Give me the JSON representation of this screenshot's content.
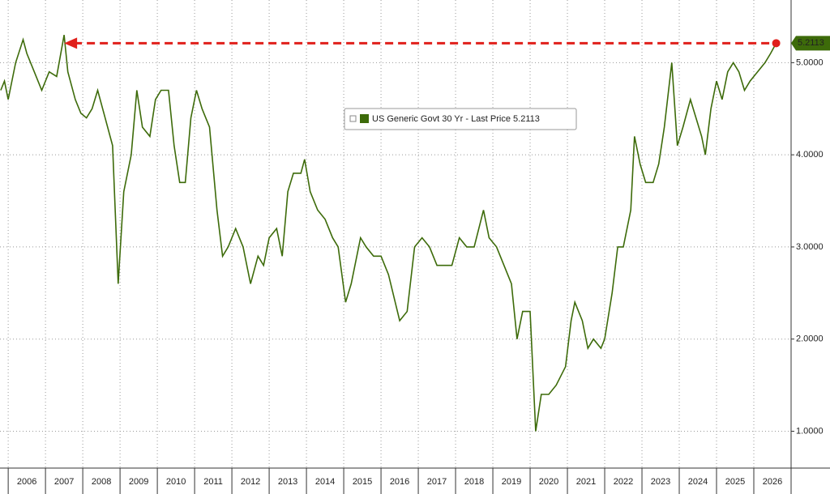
{
  "chart_data": {
    "type": "line",
    "series": [
      {
        "name": "US Generic Govt 30 Yr - Last Price 5.2113",
        "color": "#3d6b0a",
        "x": [
          2005.8,
          2005.9,
          2006.0,
          2006.2,
          2006.4,
          2006.5,
          2006.7,
          2006.9,
          2007.1,
          2007.3,
          2007.5,
          2007.6,
          2007.8,
          2007.95,
          2008.1,
          2008.25,
          2008.4,
          2008.6,
          2008.8,
          2008.95,
          2009.1,
          2009.3,
          2009.45,
          2009.6,
          2009.8,
          2009.95,
          2010.1,
          2010.3,
          2010.45,
          2010.6,
          2010.75,
          2010.9,
          2011.05,
          2011.2,
          2011.4,
          2011.6,
          2011.75,
          2011.9,
          2012.1,
          2012.3,
          2012.5,
          2012.7,
          2012.85,
          2013.0,
          2013.2,
          2013.35,
          2013.5,
          2013.65,
          2013.85,
          2013.95,
          2014.1,
          2014.3,
          2014.5,
          2014.7,
          2014.85,
          2015.05,
          2015.2,
          2015.45,
          2015.6,
          2015.8,
          2016.0,
          2016.2,
          2016.5,
          2016.7,
          2016.9,
          2017.1,
          2017.3,
          2017.5,
          2017.7,
          2017.9,
          2018.1,
          2018.3,
          2018.5,
          2018.75,
          2018.9,
          2019.1,
          2019.3,
          2019.5,
          2019.65,
          2019.8,
          2020.0,
          2020.15,
          2020.3,
          2020.5,
          2020.7,
          2020.95,
          2021.1,
          2021.2,
          2021.4,
          2021.55,
          2021.7,
          2021.9,
          2022.0,
          2022.2,
          2022.35,
          2022.5,
          2022.7,
          2022.8,
          2022.95,
          2023.1,
          2023.3,
          2023.45,
          2023.6,
          2023.8,
          2023.95,
          2024.1,
          2024.3,
          2024.45,
          2024.6,
          2024.7,
          2024.85,
          2025.0,
          2025.15,
          2025.3,
          2025.45,
          2025.6,
          2025.75,
          2025.9,
          2026.1,
          2026.3,
          2026.45,
          2026.6
        ],
        "values": [
          4.7,
          4.8,
          4.6,
          5.0,
          5.25,
          5.1,
          4.9,
          4.7,
          4.9,
          4.85,
          5.3,
          4.9,
          4.6,
          4.45,
          4.4,
          4.5,
          4.7,
          4.4,
          4.1,
          2.6,
          3.6,
          4.0,
          4.7,
          4.3,
          4.2,
          4.6,
          4.7,
          4.7,
          4.1,
          3.7,
          3.7,
          4.4,
          4.7,
          4.5,
          4.3,
          3.4,
          2.9,
          3.0,
          3.2,
          3.0,
          2.6,
          2.9,
          2.8,
          3.1,
          3.2,
          2.9,
          3.6,
          3.8,
          3.8,
          3.95,
          3.6,
          3.4,
          3.3,
          3.1,
          3.0,
          2.4,
          2.6,
          3.1,
          3.0,
          2.9,
          2.9,
          2.7,
          2.2,
          2.3,
          3.0,
          3.1,
          3.0,
          2.8,
          2.8,
          2.8,
          3.1,
          3.0,
          3.0,
          3.4,
          3.1,
          3.0,
          2.8,
          2.6,
          2.0,
          2.3,
          2.3,
          1.0,
          1.4,
          1.4,
          1.5,
          1.7,
          2.2,
          2.4,
          2.2,
          1.9,
          2.0,
          1.9,
          2.0,
          2.5,
          3.0,
          3.0,
          3.4,
          4.2,
          3.9,
          3.7,
          3.7,
          3.9,
          4.3,
          5.0,
          4.1,
          4.3,
          4.6,
          4.4,
          4.2,
          4.0,
          4.5,
          4.8,
          4.6,
          4.9,
          5.0,
          4.9,
          4.7,
          4.8,
          4.9,
          5.0,
          5.1,
          5.2113
        ]
      }
    ],
    "last_price_label": "5.2113",
    "arrow_color": "#e0201b",
    "xlim": [
      2005.78,
      2027.0
    ],
    "xticks": [
      2006,
      2007,
      2008,
      2009,
      2010,
      2011,
      2012,
      2013,
      2014,
      2015,
      2016,
      2017,
      2018,
      2019,
      2020,
      2021,
      2022,
      2023,
      2024,
      2025,
      2026
    ],
    "ylim": [
      0.6,
      5.68
    ],
    "yticks": [
      {
        "value": 1,
        "label": "1.0000"
      },
      {
        "value": 2,
        "label": "2.0000"
      },
      {
        "value": 3,
        "label": "3.0000"
      },
      {
        "value": 4,
        "label": "4.0000"
      },
      {
        "value": 5,
        "label": "5.0000"
      }
    ],
    "grid": true
  }
}
